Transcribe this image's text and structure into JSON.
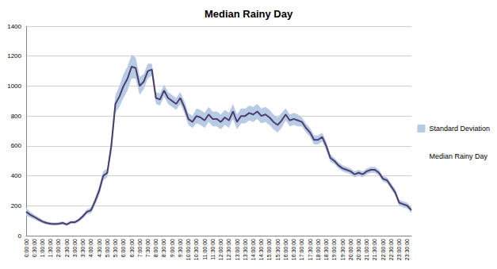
{
  "chart_data": {
    "type": "line",
    "title": "Median Rainy Day",
    "categories": [
      "0:00:00",
      null,
      "0:30:00",
      null,
      "1:00:00",
      null,
      "1:30:00",
      null,
      "2:00:00",
      null,
      "2:30:00",
      null,
      "3:00:00",
      null,
      "3:30:00",
      null,
      "4:00:00",
      null,
      "4:30:00",
      null,
      "5:00:00",
      null,
      "5:30:00",
      null,
      "6:00:00",
      null,
      "6:30:00",
      null,
      "7:00:00",
      null,
      "7:30:00",
      null,
      "8:00:00",
      null,
      "8:30:00",
      null,
      "9:00:00",
      null,
      "9:30:00",
      null,
      "10:00:00",
      null,
      "10:30:00",
      null,
      "11:00:00",
      null,
      "11:30:00",
      null,
      "12:00:00",
      null,
      "12:30:00",
      null,
      "13:00:00",
      null,
      "13:30:00",
      null,
      "14:00:00",
      null,
      "14:30:00",
      null,
      "15:00:00",
      null,
      "15:30:00",
      null,
      "16:00:00",
      null,
      "16:30:00",
      null,
      "17:00:00",
      null,
      "17:30:00",
      null,
      "18:00:00",
      null,
      "18:30:00",
      null,
      "19:00:00",
      null,
      "19:30:00",
      null,
      "20:00:00",
      null,
      "20:30:00",
      null,
      "21:00:00",
      null,
      "21:30:00",
      null,
      "22:00:00",
      null,
      "22:30:00",
      null,
      "23:00:00",
      null,
      "23:30:00",
      null
    ],
    "series": [
      {
        "name": "Standard Deviation",
        "type": "band",
        "color": "#b7cbe5",
        "values": [
          25,
          20,
          15,
          15,
          12,
          10,
          10,
          10,
          10,
          10,
          10,
          10,
          10,
          12,
          15,
          15,
          20,
          25,
          30,
          30,
          30,
          50,
          60,
          70,
          80,
          80,
          80,
          70,
          60,
          50,
          50,
          40,
          40,
          40,
          40,
          40,
          40,
          40,
          40,
          40,
          40,
          40,
          50,
          50,
          50,
          50,
          50,
          50,
          50,
          50,
          50,
          50,
          50,
          50,
          50,
          50,
          50,
          50,
          50,
          50,
          50,
          50,
          50,
          50,
          40,
          40,
          40,
          40,
          30,
          30,
          30,
          30,
          30,
          30,
          30,
          25,
          20,
          20,
          20,
          20,
          20,
          20,
          20,
          20,
          20,
          20,
          20,
          20,
          20,
          20,
          20,
          20,
          20,
          20,
          20,
          20
        ]
      },
      {
        "name": "Median Rainy Day",
        "type": "line",
        "color": "#4b3d6e",
        "values": [
          160,
          140,
          125,
          110,
          95,
          85,
          80,
          78,
          80,
          85,
          75,
          90,
          90,
          105,
          130,
          160,
          170,
          230,
          300,
          400,
          420,
          600,
          880,
          930,
          1000,
          1050,
          1130,
          1120,
          1000,
          1030,
          1100,
          1110,
          920,
          910,
          970,
          920,
          900,
          880,
          920,
          860,
          780,
          760,
          800,
          790,
          770,
          810,
          780,
          780,
          760,
          790,
          770,
          830,
          760,
          800,
          800,
          820,
          810,
          830,
          800,
          810,
          790,
          760,
          740,
          770,
          810,
          770,
          780,
          770,
          760,
          720,
          690,
          640,
          640,
          660,
          600,
          520,
          500,
          470,
          450,
          440,
          430,
          410,
          420,
          410,
          430,
          440,
          440,
          420,
          380,
          370,
          330,
          290,
          220,
          210,
          200,
          170
        ]
      }
    ],
    "ylim": [
      0,
      1400
    ],
    "yticks": [
      0,
      200,
      400,
      600,
      800,
      1000,
      1200,
      1400
    ],
    "grid": true,
    "legend": "right"
  }
}
